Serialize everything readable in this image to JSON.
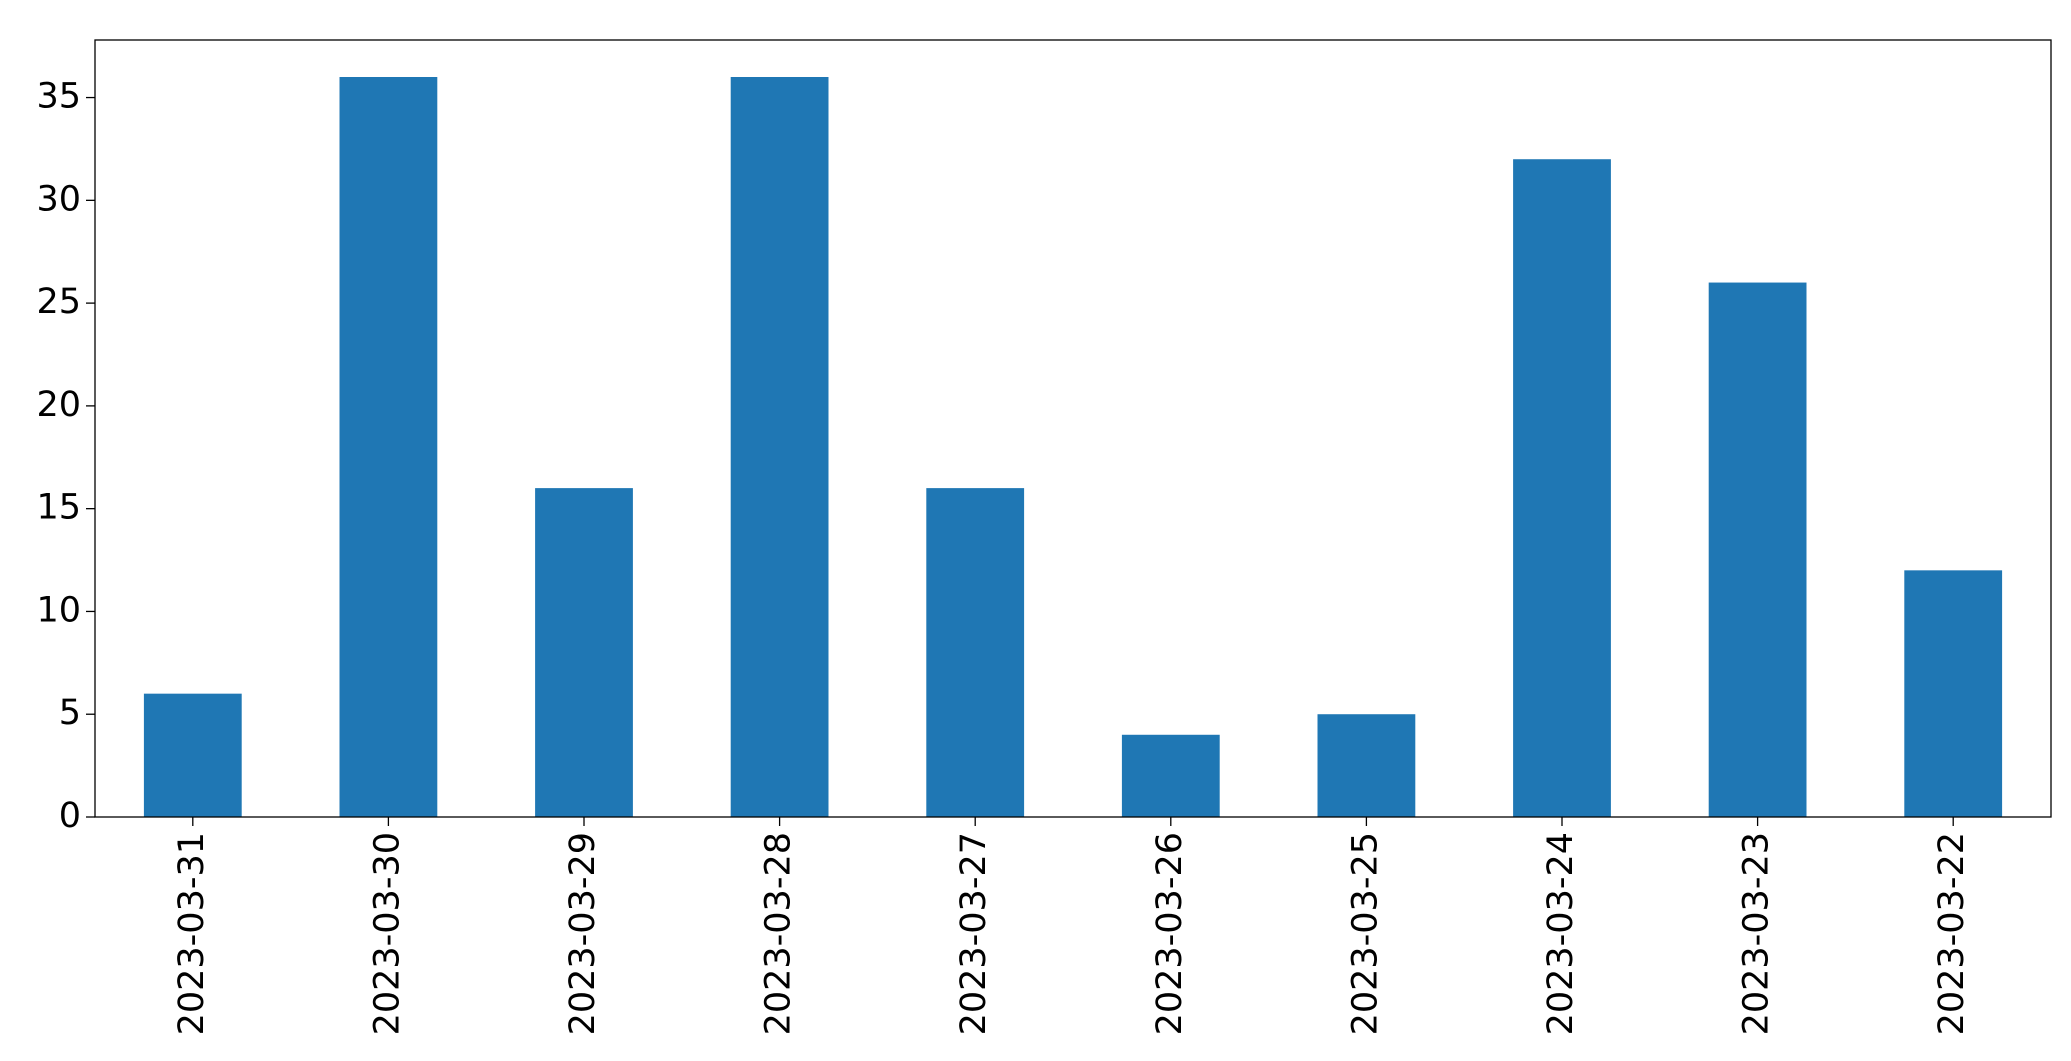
{
  "chart_data": {
    "type": "bar",
    "categories": [
      "2023-03-31",
      "2023-03-30",
      "2023-03-29",
      "2023-03-28",
      "2023-03-27",
      "2023-03-26",
      "2023-03-25",
      "2023-03-24",
      "2023-03-23",
      "2023-03-22"
    ],
    "values": [
      6,
      36,
      16,
      36,
      16,
      4,
      5,
      32,
      26,
      12
    ],
    "color": "#1f77b4",
    "ylim": [
      0,
      37.8
    ],
    "yticks": [
      0,
      5,
      10,
      15,
      20,
      25,
      30,
      35
    ],
    "grid": false
  }
}
